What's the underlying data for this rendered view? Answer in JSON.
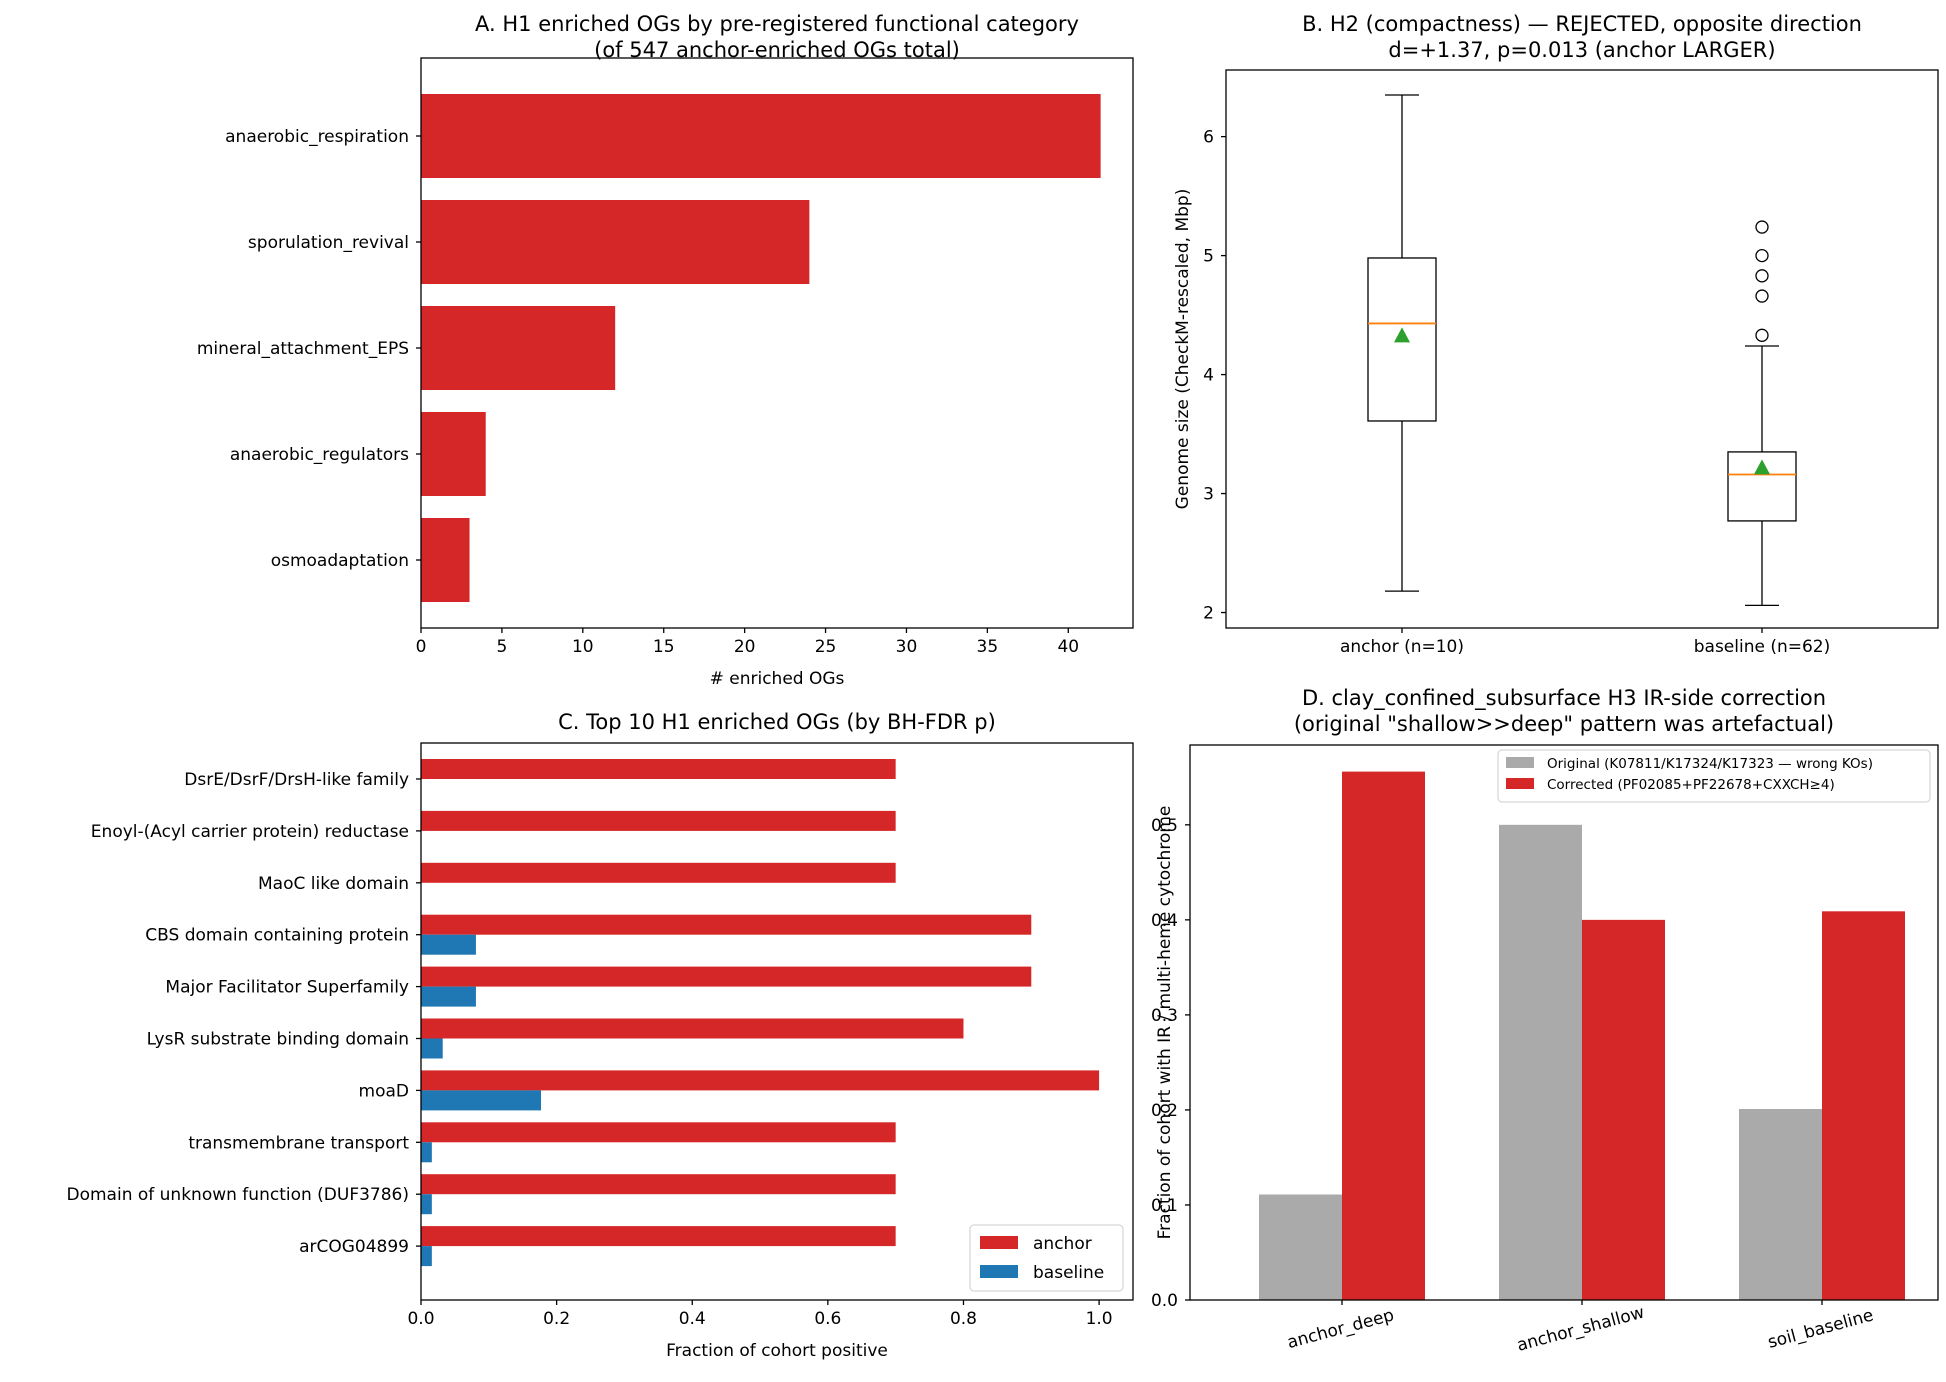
{
  "chart_data": [
    {
      "id": "A",
      "type": "bar",
      "orientation": "horizontal",
      "title": [
        "A. H1 enriched OGs by pre-registered functional category",
        "(of 547 anchor-enriched OGs total)"
      ],
      "xlabel": "# enriched OGs",
      "ylabel": "",
      "categories": [
        "anaerobic_respiration",
        "sporulation_revival",
        "mineral_attachment_EPS",
        "anaerobic_regulators",
        "osmoadaptation"
      ],
      "values": [
        42,
        24,
        12,
        4,
        3
      ],
      "xlim": [
        0,
        44
      ],
      "xticks": [
        0,
        5,
        10,
        15,
        20,
        25,
        30,
        35,
        40
      ],
      "xtick_labels": [
        "0",
        "5",
        "10",
        "15",
        "20",
        "25",
        "30",
        "35",
        "40"
      ],
      "color": "#d62728",
      "grid": false
    },
    {
      "id": "B",
      "type": "box",
      "title": [
        "B. H2 (compactness) — REJECTED, opposite direction",
        "d=+1.37, p=0.013 (anchor LARGER)"
      ],
      "xlabel": "",
      "ylabel": "Genome size (CheckM-rescaled, Mbp)",
      "categories": [
        "anchor (n=10)",
        "baseline (n=62)"
      ],
      "boxes": [
        {
          "whisker_low": 2.18,
          "q1": 3.61,
          "median": 4.43,
          "q3": 4.98,
          "whisker_high": 6.35,
          "mean": 4.33,
          "outliers": []
        },
        {
          "whisker_low": 2.06,
          "q1": 2.77,
          "median": 3.16,
          "q3": 3.35,
          "whisker_high": 4.24,
          "mean": 3.22,
          "outliers": [
            4.33,
            4.66,
            4.83,
            5.0,
            5.24
          ]
        }
      ],
      "ylim": [
        1.87,
        6.56
      ],
      "yticks": [
        2,
        3,
        4,
        5,
        6
      ],
      "ytick_labels": [
        "2",
        "3",
        "4",
        "5",
        "6"
      ],
      "colors": {
        "median": "#ff7f0e",
        "mean": "#2ca02c",
        "box": "#000000"
      },
      "grid": false
    },
    {
      "id": "C",
      "type": "bar",
      "orientation": "horizontal",
      "title": [
        "C. Top 10 H1 enriched OGs (by BH-FDR p)"
      ],
      "xlabel": "Fraction of cohort positive",
      "ylabel": "",
      "categories": [
        "DsrE/DsrF/DrsH-like family",
        "Enoyl-(Acyl carrier protein) reductase",
        "MaoC like domain",
        "CBS domain containing protein",
        "Major Facilitator Superfamily",
        "LysR substrate binding domain",
        "moaD",
        "transmembrane transport",
        "Domain of unknown function (DUF3786)",
        "arCOG04899"
      ],
      "series": [
        {
          "name": "anchor",
          "color": "#d62728",
          "values": [
            0.7,
            0.7,
            0.7,
            0.9,
            0.9,
            0.8,
            1.0,
            0.7,
            0.7,
            0.7
          ]
        },
        {
          "name": "baseline",
          "color": "#1f77b4",
          "values": [
            0.0,
            0.0,
            0.0,
            0.081,
            0.081,
            0.032,
            0.177,
            0.016,
            0.016,
            0.016
          ]
        }
      ],
      "xlim": [
        0,
        1.05
      ],
      "xticks": [
        0,
        0.2,
        0.4,
        0.6,
        0.8,
        1.0
      ],
      "xtick_labels": [
        "0.0",
        "0.2",
        "0.4",
        "0.6",
        "0.8",
        "1.0"
      ],
      "legend_position": "lower right",
      "grid": false
    },
    {
      "id": "D",
      "type": "bar",
      "orientation": "vertical",
      "title": [
        "D. clay_confined_subsurface H3 IR-side correction",
        "(original \"shallow>>deep\" pattern was artefactual)"
      ],
      "xlabel": "",
      "ylabel": "Fraction of cohort with IR / multi-heme cytochrome",
      "categories": [
        "anchor_deep",
        "anchor_shallow",
        "soil_baseline"
      ],
      "series": [
        {
          "name": "Original (K07811/K17324/K17323 — wrong KOs)",
          "color": "#aaaaaa",
          "values": [
            0.111,
            0.5,
            0.201
          ]
        },
        {
          "name": "Corrected (PF02085+PF22678+CXXCH≥4)",
          "color": "#d62728",
          "values": [
            0.556,
            0.4,
            0.409
          ]
        }
      ],
      "ylim": [
        0,
        0.584
      ],
      "yticks": [
        0,
        0.1,
        0.2,
        0.3,
        0.4,
        0.5
      ],
      "ytick_labels": [
        "0.0",
        "0.1",
        "0.2",
        "0.3",
        "0.4",
        "0.5"
      ],
      "legend_position": "upper right",
      "grid": false
    }
  ]
}
